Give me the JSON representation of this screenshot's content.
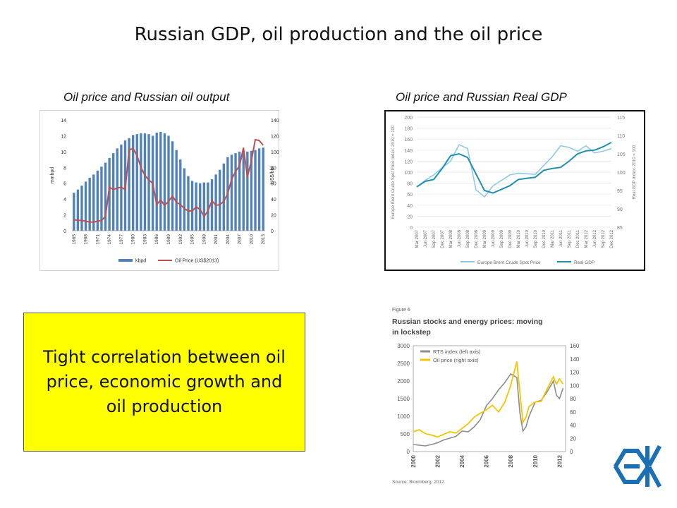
{
  "slide": {
    "title": "Russian GDP, oil production and the oil price",
    "subtitle_left": "Oil price and Russian oil output",
    "subtitle_right": "Oil price and Russian Real GDP",
    "callout": "Tight correlation between oil price, economic growth and oil production",
    "colors": {
      "callout_bg": "#ffff00",
      "logo": "#1a6fb5"
    },
    "logo_icon": "oecd-style-logo-icon"
  },
  "chart_data": [
    {
      "type": "bar+line",
      "ylabel_left": "mmbpd",
      "ylabel_right": "US$/bbl",
      "ylim_left": [
        0,
        14
      ],
      "ylim_right": [
        0,
        140
      ],
      "yticks_left": [
        "0",
        "2",
        "4",
        "6",
        "8",
        "10",
        "12",
        "14"
      ],
      "yticks_right": [
        "0",
        "20",
        "40",
        "60",
        "80",
        "100",
        "120",
        "140"
      ],
      "x_ticks": [
        "1965",
        "1968",
        "1971",
        "1974",
        "1977",
        "1980",
        "1983",
        "1986",
        "1989",
        "1992",
        "1995",
        "1998",
        "2001",
        "2004",
        "2007",
        "2010",
        "2013"
      ],
      "years": [
        1965,
        1966,
        1967,
        1968,
        1969,
        1970,
        1971,
        1972,
        1973,
        1974,
        1975,
        1976,
        1977,
        1978,
        1979,
        1980,
        1981,
        1982,
        1983,
        1984,
        1985,
        1986,
        1987,
        1988,
        1989,
        1990,
        1991,
        1992,
        1993,
        1994,
        1995,
        1996,
        1997,
        1998,
        1999,
        2000,
        2001,
        2002,
        2003,
        2004,
        2005,
        2006,
        2007,
        2008,
        2009,
        2010,
        2011,
        2012,
        2013
      ],
      "series": [
        {
          "name": "kbpd",
          "kind": "bar",
          "color": "#4f81bd",
          "values": [
            4.8,
            5.2,
            5.7,
            6.2,
            6.7,
            7.1,
            7.6,
            8.1,
            8.6,
            9.2,
            9.8,
            10.4,
            10.9,
            11.4,
            11.7,
            12.1,
            12.2,
            12.3,
            12.3,
            12.2,
            12.0,
            12.4,
            12.5,
            12.3,
            12.0,
            11.3,
            10.2,
            9.0,
            7.9,
            6.9,
            6.3,
            6.1,
            6.0,
            6.1,
            6.1,
            6.5,
            7.1,
            7.7,
            8.5,
            9.3,
            9.6,
            9.8,
            10.0,
            9.9,
            10.0,
            10.1,
            10.2,
            10.4,
            10.5
          ]
        },
        {
          "name": "Oil Price (US$2013)",
          "kind": "line",
          "color": "#c0504d",
          "values": [
            14,
            13,
            13,
            12,
            11,
            11,
            12,
            13,
            18,
            55,
            52,
            54,
            55,
            52,
            102,
            104,
            95,
            80,
            70,
            64,
            60,
            33,
            39,
            32,
            37,
            44,
            36,
            33,
            28,
            25,
            25,
            30,
            27,
            18,
            25,
            38,
            32,
            33,
            37,
            47,
            65,
            75,
            82,
            105,
            68,
            88,
            115,
            114,
            108
          ]
        }
      ]
    },
    {
      "type": "line",
      "ylabel_left": "Europe Brent Crude Spot Price Index: 2010 = 100",
      "ylabel_right": "Real GDP Index: 2010 = 100",
      "ylim_left": [
        0,
        200
      ],
      "ylim_right": [
        85,
        115
      ],
      "yticks_left": [
        "0",
        "20",
        "40",
        "60",
        "80",
        "100",
        "120",
        "140",
        "160",
        "180",
        "200"
      ],
      "yticks_right": [
        "85",
        "90",
        "95",
        "100",
        "105",
        "110",
        "115"
      ],
      "categories": [
        "Mar 2007",
        "Jun 2007",
        "Sep 2007",
        "Dec 2007",
        "Mar 2008",
        "Jun 2008",
        "Sep 2008",
        "Dec 2008",
        "Mar 2009",
        "Jun 2009",
        "Sep 2009",
        "Dec 2009",
        "Mar 2010",
        "Jun 2010",
        "Sep 2010",
        "Dec 2010",
        "Mar 2011",
        "Jun 2011",
        "Sep 2011",
        "Dec 2011",
        "Mar 2012",
        "Jun 2012",
        "Sep 2012",
        "Dec 2012"
      ],
      "series": [
        {
          "name": "Europe Brent Crude Spot Price",
          "color": "#8ecae6",
          "values": [
            73,
            85,
            95,
            108,
            120,
            150,
            143,
            68,
            55,
            75,
            85,
            95,
            98,
            97,
            96,
            112,
            128,
            148,
            145,
            138,
            148,
            135,
            138,
            143
          ]
        },
        {
          "name": "Real GDP",
          "color": "#1f8fb0",
          "values": [
            96,
            97.5,
            98,
            101,
            104.5,
            105,
            104,
            99.5,
            95,
            94.3,
            95.3,
            96.3,
            98,
            98.3,
            98.6,
            100.5,
            101,
            101.3,
            103,
            105,
            105.8,
            106,
            106.9,
            108.1
          ]
        }
      ]
    },
    {
      "type": "line",
      "figure_label": "Figure 6",
      "title": "Russian stocks and energy prices: moving in lockstep",
      "source": "Source: Bloomberg, 2012",
      "ylim_left": [
        0,
        3000
      ],
      "ylim_right": [
        0,
        160
      ],
      "yticks_left": [
        "0",
        "500",
        "1000",
        "1500",
        "2000",
        "2500",
        "3000"
      ],
      "yticks_right": [
        "0",
        "20",
        "40",
        "60",
        "80",
        "100",
        "120",
        "140",
        "160"
      ],
      "x_ticks": [
        "2000",
        "2002",
        "2004",
        "2006",
        "2008",
        "2010",
        "2012"
      ],
      "x": [
        2000.0,
        2000.5,
        2001.0,
        2001.5,
        2002.0,
        2002.5,
        2003.0,
        2003.5,
        2004.0,
        2004.5,
        2005.0,
        2005.5,
        2006.0,
        2006.5,
        2007.0,
        2007.5,
        2008.0,
        2008.5,
        2008.75,
        2009.0,
        2009.25,
        2009.5,
        2010.0,
        2010.5,
        2011.0,
        2011.5,
        2011.75,
        2012.0,
        2012.3
      ],
      "series": [
        {
          "name": "RTS index  (left axis)",
          "color": "#8c8c8c",
          "values": [
            200,
            180,
            160,
            200,
            250,
            330,
            380,
            430,
            580,
            560,
            700,
            900,
            1300,
            1500,
            1750,
            1950,
            2200,
            2100,
            1100,
            580,
            700,
            1000,
            1400,
            1450,
            1700,
            2000,
            1600,
            1500,
            1800
          ]
        },
        {
          "name": "Oil price (right axis)",
          "color": "#f5c400",
          "values": [
            30,
            33,
            27,
            25,
            22,
            26,
            30,
            28,
            35,
            42,
            52,
            58,
            63,
            70,
            60,
            74,
            100,
            136,
            90,
            44,
            52,
            68,
            75,
            76,
            95,
            113,
            102,
            110,
            102
          ]
        }
      ]
    }
  ]
}
